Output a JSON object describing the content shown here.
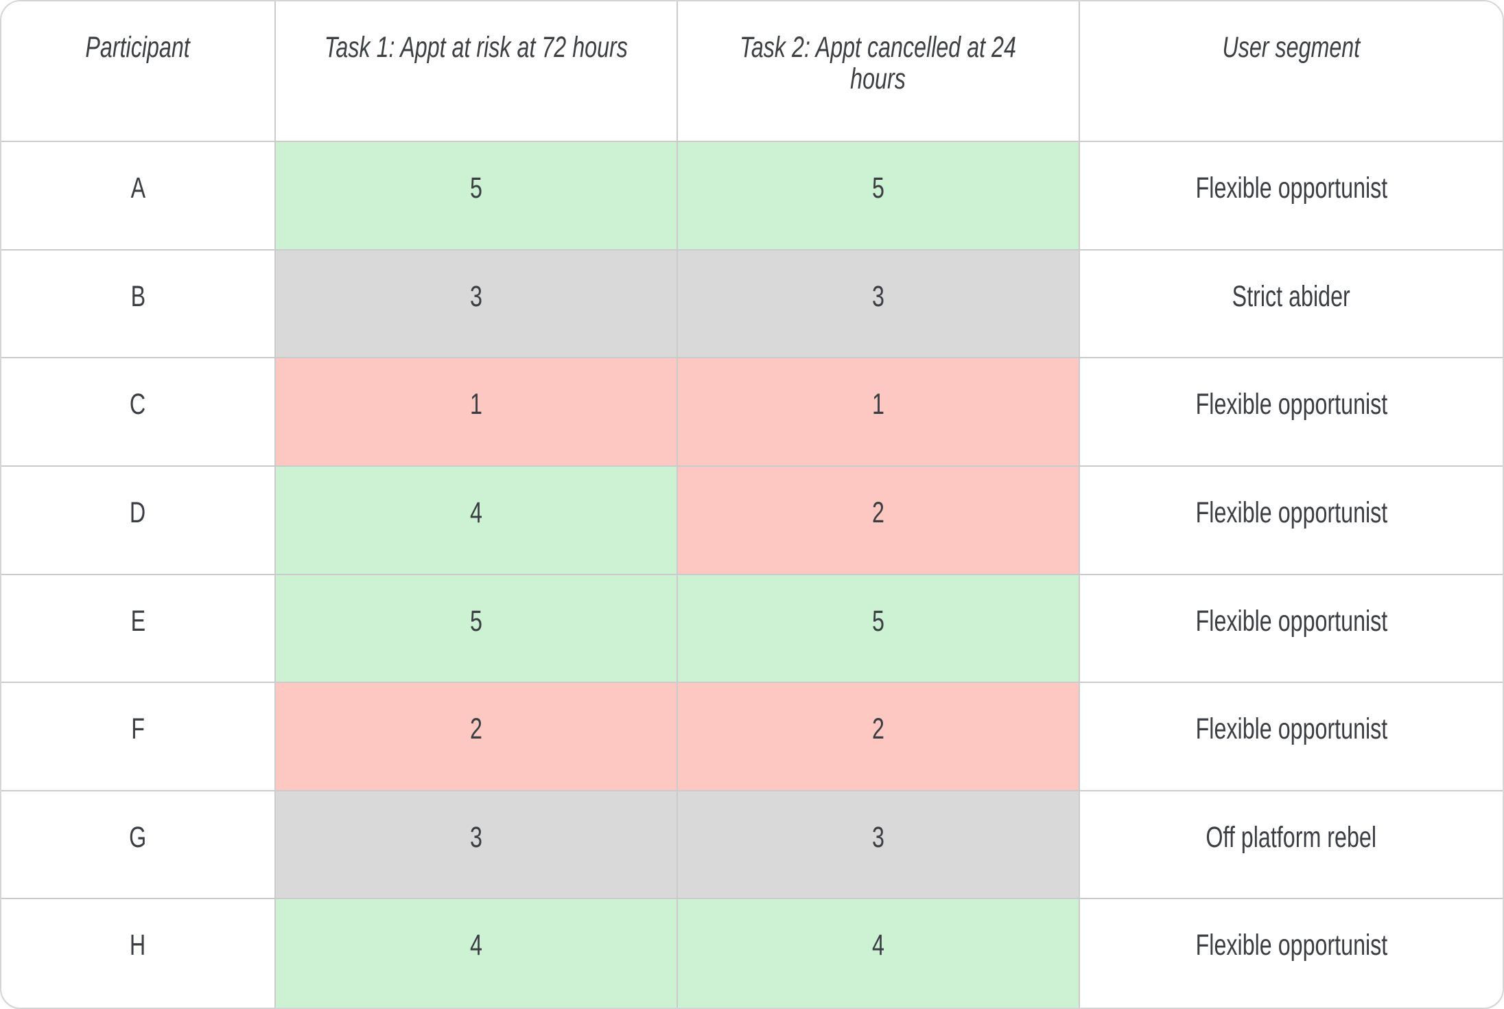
{
  "table": {
    "columns": [
      {
        "label": "Participant"
      },
      {
        "label": "Task 1: Appt at risk at 72 hours"
      },
      {
        "label": "Task 2: Appt cancelled at 24\nhours"
      },
      {
        "label": "User segment"
      }
    ],
    "rows": [
      {
        "participant": "A",
        "task1": {
          "value": "5",
          "status": "good"
        },
        "task2": {
          "value": "5",
          "status": "good"
        },
        "segment": "Flexible opportunist"
      },
      {
        "participant": "B",
        "task1": {
          "value": "3",
          "status": "neutral"
        },
        "task2": {
          "value": "3",
          "status": "neutral"
        },
        "segment": "Strict abider"
      },
      {
        "participant": "C",
        "task1": {
          "value": "1",
          "status": "bad"
        },
        "task2": {
          "value": "1",
          "status": "bad"
        },
        "segment": "Flexible opportunist"
      },
      {
        "participant": "D",
        "task1": {
          "value": "4",
          "status": "good"
        },
        "task2": {
          "value": "2",
          "status": "bad"
        },
        "segment": "Flexible opportunist"
      },
      {
        "participant": "E",
        "task1": {
          "value": "5",
          "status": "good"
        },
        "task2": {
          "value": "5",
          "status": "good"
        },
        "segment": "Flexible opportunist"
      },
      {
        "participant": "F",
        "task1": {
          "value": "2",
          "status": "bad"
        },
        "task2": {
          "value": "2",
          "status": "bad"
        },
        "segment": "Flexible opportunist"
      },
      {
        "participant": "G",
        "task1": {
          "value": "3",
          "status": "neutral"
        },
        "task2": {
          "value": "3",
          "status": "neutral"
        },
        "segment": "Off platform rebel"
      },
      {
        "participant": "H",
        "task1": {
          "value": "4",
          "status": "good"
        },
        "task2": {
          "value": "4",
          "status": "good"
        },
        "segment": "Flexible opportunist"
      }
    ]
  },
  "colors": {
    "good": "#cdf2d3",
    "neutral": "#d9d9d9",
    "bad": "#fdc8c1",
    "header_text": "#3c4043",
    "body_text": "#3a3d42",
    "grid_line": "#cbcbcb"
  }
}
